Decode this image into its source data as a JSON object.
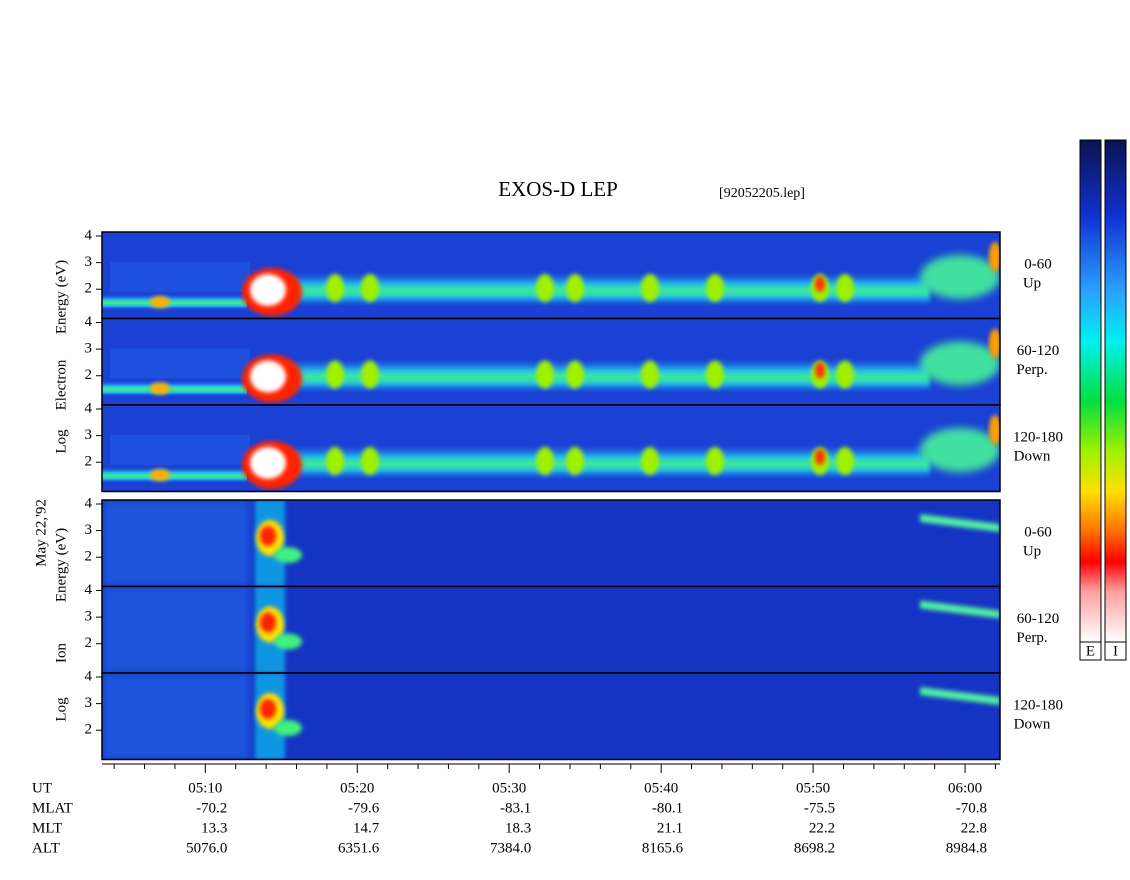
{
  "chart_data": {
    "type": "spectrogram",
    "title": "EXOS-D LEP",
    "subtitle": "[92052205.lep]",
    "date_label": "May 22,'92",
    "xlim": [
      303.2,
      362.3
    ],
    "xticks": [
      {
        "value": 310,
        "label": "05:10"
      },
      {
        "value": 320,
        "label": "05:20"
      },
      {
        "value": 330,
        "label": "05:30"
      },
      {
        "value": 340,
        "label": "05:40"
      },
      {
        "value": 350,
        "label": "05:50"
      },
      {
        "value": 360,
        "label": "06:00"
      }
    ],
    "xminorticks": [
      304,
      306,
      308,
      312,
      314,
      316,
      318,
      322,
      324,
      326,
      328,
      332,
      334,
      336,
      338,
      342,
      344,
      346,
      348,
      352,
      354,
      356,
      358,
      362
    ],
    "ylim": [
      0.9,
      4.15
    ],
    "yticks": [
      2,
      3,
      4
    ],
    "groups": [
      {
        "species_label": "Electron",
        "ylabel_top": "Energy (eV)",
        "ylabel_bottom": "Log",
        "panels": [
          {
            "pitch": "0-60",
            "direction": "Up"
          },
          {
            "pitch": "60-120",
            "direction": "Perp."
          },
          {
            "pitch": "120-180",
            "direction": "Down"
          }
        ]
      },
      {
        "species_label": "Ion",
        "ylabel_top": "Energy (eV)",
        "ylabel_bottom": "Log",
        "panels": [
          {
            "pitch": "0-60",
            "direction": "Up"
          },
          {
            "pitch": "60-120",
            "direction": "Perp."
          },
          {
            "pitch": "120-180",
            "direction": "Down"
          }
        ]
      }
    ],
    "ephemeris": {
      "ut_label": "UT",
      "rows": [
        {
          "label": "MLAT",
          "values": [
            "-70.2",
            "-79.6",
            "-83.1",
            "-80.1",
            "-75.5",
            "-70.8"
          ]
        },
        {
          "label": "MLT",
          "values": [
            "13.3",
            "14.7",
            "18.3",
            "21.1",
            "22.2",
            "22.8"
          ]
        },
        {
          "label": "ALT",
          "values": [
            "5076.0",
            "6351.6",
            "7384.0",
            "8165.6",
            "8698.2",
            "8984.8"
          ]
        }
      ]
    },
    "colorbar_labels": [
      "E",
      "I"
    ]
  }
}
